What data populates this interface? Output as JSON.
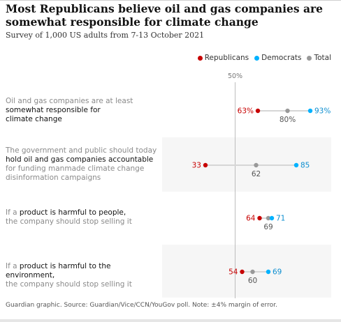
{
  "header": {
    "title": "Most Republicans believe oil and gas companies are somewhat responsible for climate change",
    "subtitle": "Survey of 1,000 US adults from 7-13 October 2021"
  },
  "legend": [
    {
      "label": "Republicans",
      "color": "#c70000"
    },
    {
      "label": "Democrats",
      "color": "#00b2ff"
    },
    {
      "label": "Total",
      "color": "#999999"
    }
  ],
  "reference_label": "50%",
  "footer": "Guardian graphic. Source: Guardian/Vice/CCN/YouGov poll. Note: ±4% margin of error.",
  "rows": [
    {
      "segments": [
        {
          "text": "Oil and gas companies are at least",
          "strong": false,
          "newline": true
        },
        {
          "text": "somewhat responsible for",
          "strong": true,
          "newline": true
        },
        {
          "text": "climate change",
          "strong": true,
          "newline": false
        }
      ],
      "labels": {
        "republicans": "63%",
        "democrats": "93%",
        "total": "80%"
      },
      "shaded": false
    },
    {
      "segments": [
        {
          "text": "The government and public should today",
          "strong": false,
          "newline": true
        },
        {
          "text": "hold oil and gas companies accountable",
          "strong": true,
          "newline": true
        },
        {
          "text": "for funding manmade climate change",
          "strong": false,
          "newline": true
        },
        {
          "text": "disinformation campaigns",
          "strong": false,
          "newline": false
        }
      ],
      "labels": {
        "republicans": "33",
        "democrats": "85",
        "total": "62"
      },
      "shaded": true
    },
    {
      "segments": [
        {
          "text": "If a ",
          "strong": false,
          "newline": false
        },
        {
          "text": "product is harmful to people,",
          "strong": true,
          "newline": true
        },
        {
          "text": "the company should stop selling it",
          "strong": false,
          "newline": false
        }
      ],
      "labels": {
        "republicans": "64",
        "democrats": "71",
        "total": "69"
      },
      "shaded": false
    },
    {
      "segments": [
        {
          "text": "If a ",
          "strong": false,
          "newline": false
        },
        {
          "text": "product is harmful to the environment,",
          "strong": true,
          "newline": true
        },
        {
          "text": "the company should stop selling it",
          "strong": false,
          "newline": false
        }
      ],
      "labels": {
        "republicans": "54",
        "democrats": "69",
        "total": "60"
      },
      "shaded": true
    }
  ],
  "chart_data": {
    "type": "scatter",
    "title": "Most Republicans believe oil and gas companies are somewhat responsible for climate change",
    "subtitle": "Survey of 1,000 US adults from 7-13 October 2021",
    "unit": "%",
    "reference_line": 50,
    "categories": [
      "Oil and gas companies are at least somewhat responsible for climate change",
      "The government and public should today hold oil and gas companies accountable for funding manmade climate change disinformation campaigns",
      "If a product is harmful to people, the company should stop selling it",
      "If a product is harmful to the environment, the company should stop selling it"
    ],
    "series": [
      {
        "name": "Republicans",
        "color": "#c70000",
        "values": [
          63,
          33,
          64,
          54
        ]
      },
      {
        "name": "Democrats",
        "color": "#00b2ff",
        "values": [
          93,
          85,
          71,
          69
        ]
      },
      {
        "name": "Total",
        "color": "#999999",
        "values": [
          80,
          62,
          69,
          60
        ]
      }
    ],
    "legend_position": "top-right",
    "grid": false
  }
}
